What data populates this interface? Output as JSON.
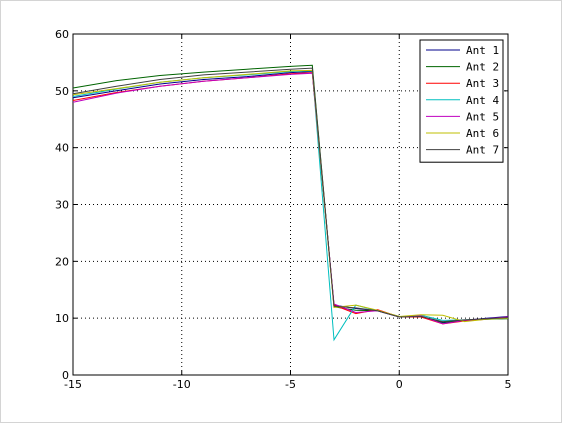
{
  "chart_data": {
    "type": "line",
    "title": "",
    "xlabel": "",
    "ylabel": "",
    "xlim": [
      -15,
      5
    ],
    "ylim": [
      0,
      60
    ],
    "x_ticks": [
      -15,
      -10,
      -5,
      0,
      5
    ],
    "y_ticks": [
      0,
      10,
      20,
      30,
      40,
      50,
      60
    ],
    "x_tick_labels": [
      "-15",
      "-10",
      "-5",
      "0",
      "5"
    ],
    "y_tick_labels": [
      "0",
      "10",
      "20",
      "30",
      "40",
      "50",
      "60"
    ],
    "grid": true,
    "legend_position": "top-right",
    "series": [
      {
        "name": "Ant 1",
        "color": "#00008b",
        "points": [
          [
            -15,
            48.8
          ],
          [
            -13,
            50.0
          ],
          [
            -11,
            51.2
          ],
          [
            -9,
            52.0
          ],
          [
            -7,
            52.5
          ],
          [
            -5,
            53.2
          ],
          [
            -4,
            53.4
          ],
          [
            -3,
            12.3
          ],
          [
            -2,
            11.7
          ],
          [
            -1,
            11.3
          ],
          [
            0,
            10.3
          ],
          [
            1,
            10.3
          ],
          [
            2,
            9.2
          ],
          [
            3,
            9.6
          ],
          [
            4,
            10.0
          ],
          [
            5,
            10.3
          ]
        ]
      },
      {
        "name": "Ant 2",
        "color": "#006400",
        "points": [
          [
            -15,
            50.5
          ],
          [
            -13,
            51.8
          ],
          [
            -11,
            52.7
          ],
          [
            -9,
            53.3
          ],
          [
            -7,
            53.8
          ],
          [
            -5,
            54.3
          ],
          [
            -4,
            54.5
          ],
          [
            -3,
            12.0
          ],
          [
            -2,
            11.4
          ],
          [
            -1,
            11.3
          ],
          [
            0,
            10.3
          ],
          [
            1,
            10.2
          ],
          [
            2,
            9.3
          ],
          [
            3,
            9.6
          ],
          [
            4,
            9.8
          ],
          [
            5,
            9.9
          ]
        ]
      },
      {
        "name": "Ant 3",
        "color": "#ff0000",
        "points": [
          [
            -15,
            48.3
          ],
          [
            -13,
            49.7
          ],
          [
            -11,
            50.8
          ],
          [
            -9,
            51.7
          ],
          [
            -7,
            52.3
          ],
          [
            -5,
            53.0
          ],
          [
            -4,
            53.2
          ],
          [
            -3,
            12.3
          ],
          [
            -2,
            10.8
          ],
          [
            -1,
            11.5
          ],
          [
            0,
            10.2
          ],
          [
            1,
            10.2
          ],
          [
            2,
            9.0
          ],
          [
            3,
            9.5
          ],
          [
            4,
            9.8
          ],
          [
            5,
            10.2
          ]
        ]
      },
      {
        "name": "Ant 4",
        "color": "#00bfbf",
        "points": [
          [
            -15,
            49.0
          ],
          [
            -13,
            50.3
          ],
          [
            -11,
            51.5
          ],
          [
            -9,
            52.3
          ],
          [
            -7,
            52.8
          ],
          [
            -5,
            53.4
          ],
          [
            -4,
            53.5
          ],
          [
            -3,
            6.2
          ],
          [
            -2,
            12.3
          ],
          [
            -1,
            11.3
          ],
          [
            0,
            10.2
          ],
          [
            1,
            10.5
          ],
          [
            2,
            9.6
          ],
          [
            3,
            9.7
          ],
          [
            4,
            9.8
          ],
          [
            5,
            10.0
          ]
        ]
      },
      {
        "name": "Ant 5",
        "color": "#bf00bf",
        "points": [
          [
            -15,
            48.0
          ],
          [
            -13,
            49.6
          ],
          [
            -11,
            50.8
          ],
          [
            -9,
            51.7
          ],
          [
            -7,
            52.3
          ],
          [
            -5,
            52.9
          ],
          [
            -4,
            53.1
          ],
          [
            -3,
            12.5
          ],
          [
            -2,
            11.0
          ],
          [
            -1,
            11.3
          ],
          [
            0,
            10.2
          ],
          [
            1,
            10.4
          ],
          [
            2,
            9.0
          ],
          [
            3,
            9.6
          ],
          [
            4,
            9.9
          ],
          [
            5,
            10.2
          ]
        ]
      },
      {
        "name": "Ant 6",
        "color": "#bfbf00",
        "points": [
          [
            -15,
            49.3
          ],
          [
            -13,
            50.4
          ],
          [
            -11,
            51.5
          ],
          [
            -9,
            52.3
          ],
          [
            -7,
            52.9
          ],
          [
            -5,
            53.5
          ],
          [
            -4,
            53.6
          ],
          [
            -3,
            11.9
          ],
          [
            -2,
            12.3
          ],
          [
            -1,
            11.4
          ],
          [
            0,
            10.3
          ],
          [
            1,
            10.6
          ],
          [
            2,
            10.5
          ],
          [
            3,
            9.4
          ],
          [
            4,
            9.8
          ],
          [
            5,
            10.0
          ]
        ]
      },
      {
        "name": "Ant 7",
        "color": "#404040",
        "points": [
          [
            -15,
            49.5
          ],
          [
            -13,
            50.8
          ],
          [
            -11,
            52.0
          ],
          [
            -9,
            52.8
          ],
          [
            -7,
            53.3
          ],
          [
            -5,
            53.8
          ],
          [
            -4,
            54.0
          ],
          [
            -3,
            12.1
          ],
          [
            -2,
            11.8
          ],
          [
            -1,
            11.3
          ],
          [
            0,
            10.2
          ],
          [
            1,
            10.3
          ],
          [
            2,
            9.4
          ],
          [
            3,
            9.7
          ],
          [
            4,
            9.9
          ],
          [
            5,
            10.1
          ]
        ]
      }
    ]
  }
}
